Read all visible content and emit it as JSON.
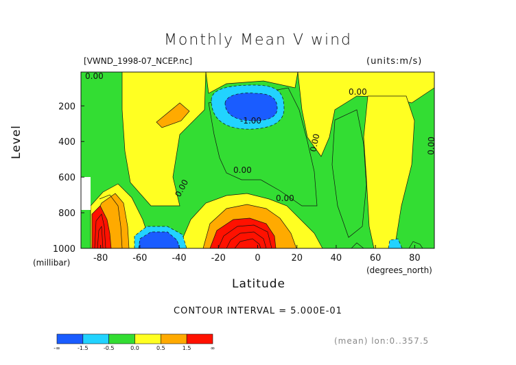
{
  "chart_data": {
    "type": "heatmap",
    "title": "Monthly Mean V wind",
    "file_label": "[VWND_1998-07_NCEP.nc]",
    "units_label": "(units:m/s)",
    "ylabel": "Level",
    "ylabel_unit": "(millibar)",
    "xlabel": "Latitude",
    "xlabel_unit": "(degrees_north)",
    "xlim": [
      -90,
      90
    ],
    "ylim": [
      1000,
      10
    ],
    "x_ticks": [
      -80,
      -60,
      -40,
      -20,
      0,
      20,
      40,
      60,
      80
    ],
    "y_ticks": [
      200,
      400,
      600,
      800,
      1000
    ],
    "contour_interval_text": "CONTOUR INTERVAL = 5.000E-01",
    "contour_labels": [
      "0.00",
      "-1.00"
    ],
    "colorbar": {
      "colors": [
        "#1a5cff",
        "#22d3ff",
        "#33dd33",
        "#ffff22",
        "#ffaa00",
        "#ff1100"
      ],
      "tick_labels": [
        "-∞",
        "-1.5",
        "-0.5",
        "0.0",
        "0.5",
        "1.5",
        "∞"
      ]
    },
    "footnote": "(mean) lon:0..357.5",
    "features": [
      {
        "lat": -82,
        "lev": 1000,
        "value": 2.5
      },
      {
        "lat": -73,
        "lev": 820,
        "value": 1.2
      },
      {
        "lat": -52,
        "lev": 960,
        "value": -2.0
      },
      {
        "lat": -10,
        "lev": 960,
        "value": 3.0
      },
      {
        "lat": -8,
        "lev": 180,
        "value": -1.5
      },
      {
        "lat": -45,
        "lev": 240,
        "value": 0.6
      },
      {
        "lat": 50,
        "lev": 970,
        "value": 0.4
      }
    ]
  }
}
